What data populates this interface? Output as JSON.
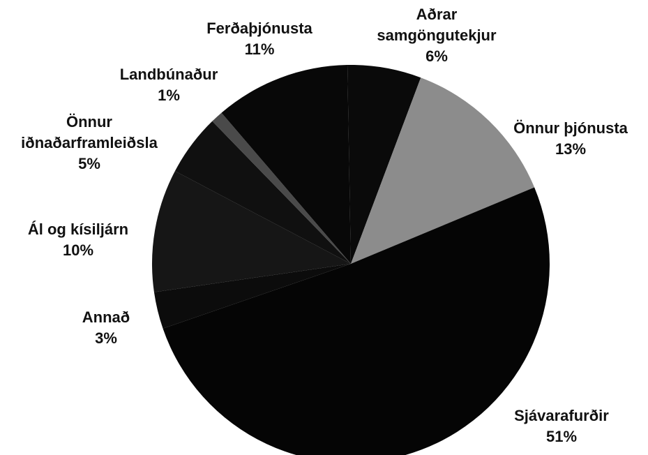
{
  "chart_data": {
    "type": "pie",
    "categories": [
      [
        "Aðrar",
        "samgöngutekjur"
      ],
      [
        "Önnur þjónusta"
      ],
      [
        "Sjávarafurðir"
      ],
      [
        "Annað"
      ],
      [
        "Ál og kísiljárn"
      ],
      [
        "Önnur",
        "iðnaðarframleiðsla"
      ],
      [
        "Landbúnaður"
      ],
      [
        "Ferðaþjónusta"
      ]
    ],
    "values": [
      6,
      13,
      51,
      3,
      10,
      5,
      1,
      11
    ],
    "value_labels": [
      "6%",
      "13%",
      "51%",
      "3%",
      "10%",
      "5%",
      "1%",
      "11%"
    ],
    "colors": [
      "#0a0a0a",
      "#8c8c8c",
      "#050505",
      "#0c0c0c",
      "#161616",
      "#101010",
      "#4a4a4a",
      "#080808"
    ]
  }
}
